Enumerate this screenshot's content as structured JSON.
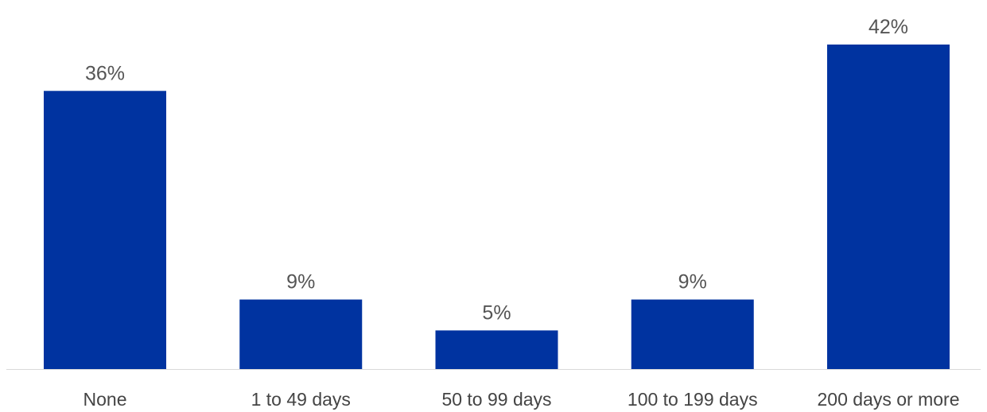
{
  "chart_data": {
    "type": "bar",
    "title": "",
    "xlabel": "",
    "ylabel": "",
    "categories": [
      "None",
      "1 to 49 days",
      "50 to 99 days",
      "100 to 199 days",
      "200 days or more"
    ],
    "values": [
      36,
      9,
      5,
      9,
      42
    ],
    "value_labels": [
      "36%",
      "9%",
      "5%",
      "9%",
      "42%"
    ],
    "ylim": [
      0,
      42
    ],
    "grid": false,
    "legend": "none",
    "bar_color": "#0033A0",
    "baseline_color": "#d9d9d9"
  }
}
